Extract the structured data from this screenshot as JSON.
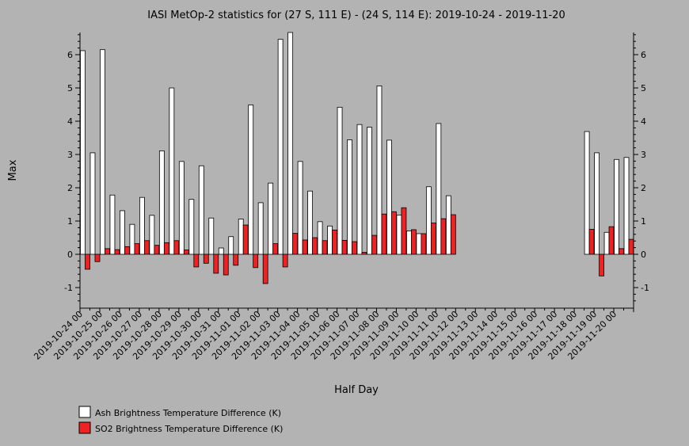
{
  "chart_data": {
    "type": "bar",
    "title": "IASI MetOp-2 statistics for (27 S, 111 E) - (24 S, 114 E): 2019-10-24 - 2019-11-20",
    "xlabel": "Half Day",
    "ylabel": "Max",
    "ylim": [
      -1.6,
      6.7
    ],
    "yticks": [
      -1,
      0,
      1,
      2,
      3,
      4,
      5,
      6
    ],
    "grid": false,
    "legend_position": "bottom-left",
    "categories": [
      "2019-10-24 00",
      "2019-10-24 12",
      "2019-10-25 00",
      "2019-10-25 12",
      "2019-10-26 00",
      "2019-10-26 12",
      "2019-10-27 00",
      "2019-10-27 12",
      "2019-10-28 00",
      "2019-10-28 12",
      "2019-10-29 00",
      "2019-10-29 12",
      "2019-10-30 00",
      "2019-10-30 12",
      "2019-10-31 00",
      "2019-10-31 12",
      "2019-11-01 00",
      "2019-11-01 12",
      "2019-11-02 00",
      "2019-11-02 12",
      "2019-11-03 00",
      "2019-11-03 12",
      "2019-11-04 00",
      "2019-11-04 12",
      "2019-11-05 00",
      "2019-11-05 12",
      "2019-11-06 00",
      "2019-11-06 12",
      "2019-11-07 00",
      "2019-11-07 12",
      "2019-11-08 00",
      "2019-11-08 12",
      "2019-11-09 00",
      "2019-11-09 12",
      "2019-11-10 00",
      "2019-11-10 12",
      "2019-11-11 00",
      "2019-11-11 12",
      "2019-11-12 00",
      "2019-11-12 12",
      "2019-11-13 00",
      "2019-11-13 12",
      "2019-11-14 00",
      "2019-11-14 12",
      "2019-11-15 00",
      "2019-11-15 12",
      "2019-11-16 00",
      "2019-11-16 12",
      "2019-11-17 00",
      "2019-11-17 12",
      "2019-11-18 00",
      "2019-11-18 12",
      "2019-11-19 00",
      "2019-11-19 12",
      "2019-11-20 00",
      "2019-11-20 12"
    ],
    "tick_labels": [
      "2019-10-24 00",
      "2019-10-25 00",
      "2019-10-26 00",
      "2019-10-27 00",
      "2019-10-28 00",
      "2019-10-29 00",
      "2019-10-30 00",
      "2019-10-31 00",
      "2019-11-01 00",
      "2019-11-02 00",
      "2019-11-03 00",
      "2019-11-04 00",
      "2019-11-05 00",
      "2019-11-06 00",
      "2019-11-07 00",
      "2019-11-08 00",
      "2019-11-09 00",
      "2019-11-10 00",
      "2019-11-11 00",
      "2019-11-12 00",
      "2019-11-13 00",
      "2019-11-14 00",
      "2019-11-15 00",
      "2019-11-16 00",
      "2019-11-17 00",
      "2019-11-18 00",
      "2019-11-19 00",
      "2019-11-20 00"
    ],
    "series": [
      {
        "name": "Ash Brightness Temperature Difference (K)",
        "color": "#ffffff",
        "values": [
          6.12,
          3.05,
          6.15,
          1.78,
          1.31,
          0.9,
          1.71,
          1.17,
          3.11,
          5.0,
          2.79,
          1.65,
          2.66,
          1.09,
          0.19,
          0.53,
          1.06,
          4.49,
          1.55,
          2.14,
          6.46,
          6.7,
          2.79,
          1.9,
          0.98,
          0.85,
          4.42,
          3.44,
          3.9,
          3.82,
          5.06,
          3.43,
          1.18,
          0.7,
          0.62,
          2.03,
          3.93,
          1.76,
          null,
          null,
          null,
          null,
          null,
          null,
          null,
          null,
          null,
          null,
          null,
          null,
          null,
          3.69,
          3.05,
          0.66,
          2.85,
          2.91
        ]
      },
      {
        "name": "SO2 Brightness Temperature Difference (K)",
        "color": "#ee2222",
        "values": [
          -0.45,
          -0.22,
          0.17,
          0.14,
          0.23,
          0.32,
          0.41,
          0.27,
          0.35,
          0.41,
          0.13,
          -0.38,
          -0.27,
          -0.57,
          -0.62,
          -0.33,
          0.88,
          -0.4,
          -0.88,
          0.32,
          -0.38,
          0.63,
          0.43,
          0.5,
          0.41,
          0.73,
          0.42,
          0.38,
          0.06,
          0.57,
          1.21,
          1.28,
          1.4,
          0.74,
          0.62,
          0.94,
          1.07,
          1.19,
          null,
          null,
          null,
          null,
          null,
          null,
          null,
          null,
          null,
          null,
          null,
          null,
          null,
          0.75,
          -0.65,
          0.83,
          0.17,
          0.45
        ]
      }
    ]
  }
}
